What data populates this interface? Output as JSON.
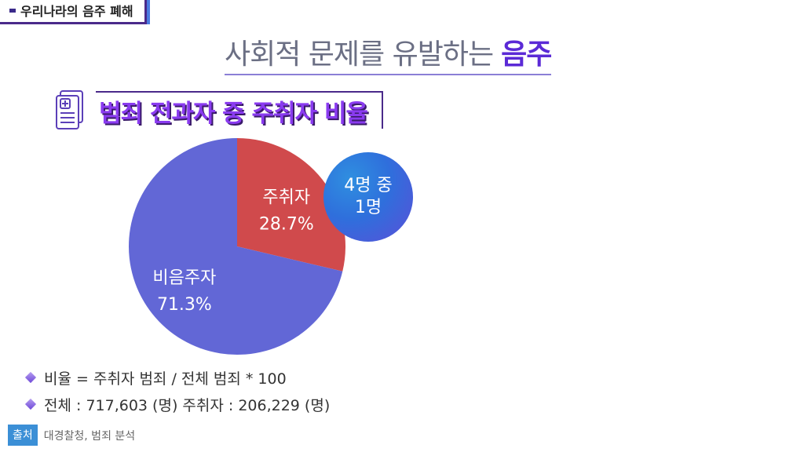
{
  "header": {
    "tag": "우리나라의 음주 폐해",
    "title_main": "사회적 문제를 유발하는",
    "title_em": "음주"
  },
  "section": {
    "title": "범죄 전과자 중 주취자 비율"
  },
  "icons": {
    "section_icon": "medical-document-icon",
    "bullet_icon": "diamond-icon"
  },
  "chart_data": {
    "type": "pie",
    "slices": [
      {
        "label": "주취자",
        "value": 28.7,
        "display": "28.7%",
        "color": "#d04a4c"
      },
      {
        "label": "비음주자",
        "value": 71.3,
        "display": "71.3%",
        "color": "#6267d6"
      }
    ]
  },
  "callout": {
    "line1": "4명 중",
    "line2": "1명"
  },
  "bullets": [
    "비율 = 주취자 범죄 / 전체 범죄 * 100",
    "전체 : 717,603 (명) 주취자 : 206,229 (명)"
  ],
  "source": {
    "badge": "출처",
    "text": "대경찰청, 범죄 분석"
  }
}
